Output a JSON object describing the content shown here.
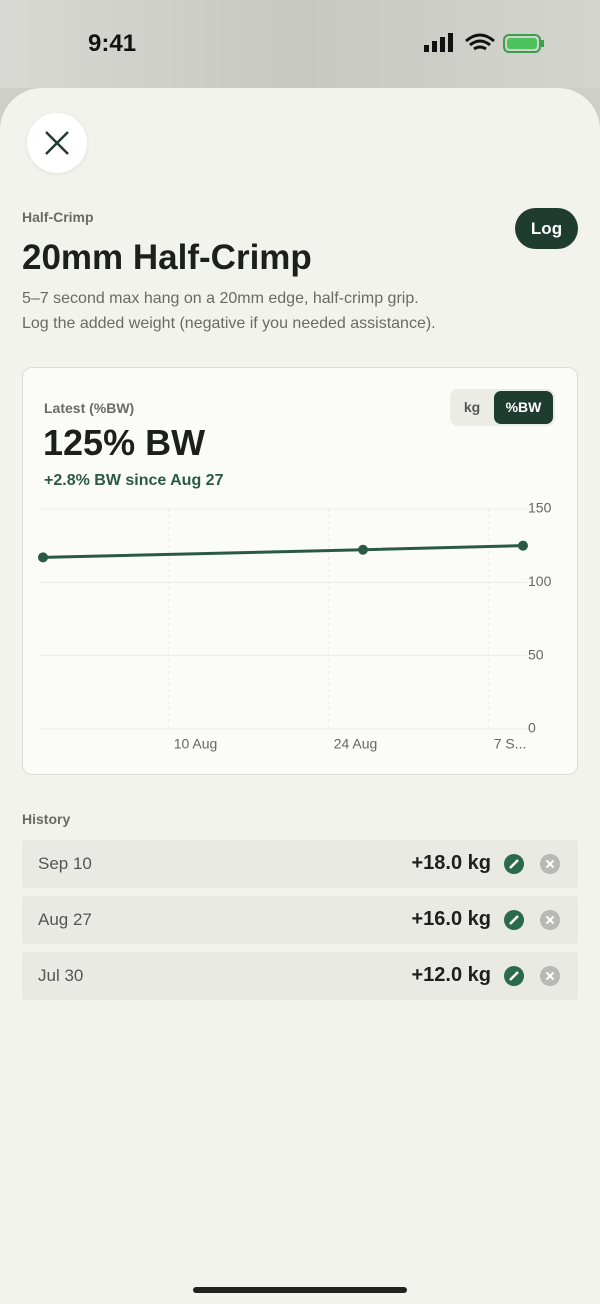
{
  "status_bar": {
    "time": "9:41"
  },
  "header": {
    "category": "Half-Crimp",
    "title": "20mm Half-Crimp",
    "log_button": "Log",
    "description": [
      "5–7 second max hang on a 20mm edge, half-crimp grip.",
      "Log the added weight (negative if you needed assistance)."
    ]
  },
  "card": {
    "label": "Latest (%BW)",
    "value": "125% BW",
    "change": "+2.8% BW since Aug 27",
    "toggle": [
      "kg",
      "%BW"
    ]
  },
  "chart": {
    "type": "line",
    "color": "#2b5a44",
    "grid": true,
    "x": [
      "30 Jul",
      "27 Aug",
      "10 Sep"
    ],
    "values": [
      117,
      122.2,
      125
    ],
    "xlim": [
      "30 Jul",
      "10 Sep"
    ],
    "xticks": [
      "10 Aug",
      "24 Aug",
      {
        "value": "7 Sep",
        "label": "7 S..."
      }
    ],
    "ylim": [
      0,
      150
    ],
    "yticks": [
      0,
      50,
      100,
      150
    ]
  },
  "history": {
    "title": "History",
    "rows": [
      {
        "date": "Sep 10",
        "value": "+18.0 kg"
      },
      {
        "date": "Aug 27",
        "value": "+16.0 kg"
      },
      {
        "date": "Jul 30",
        "value": "+12.0 kg"
      }
    ]
  }
}
